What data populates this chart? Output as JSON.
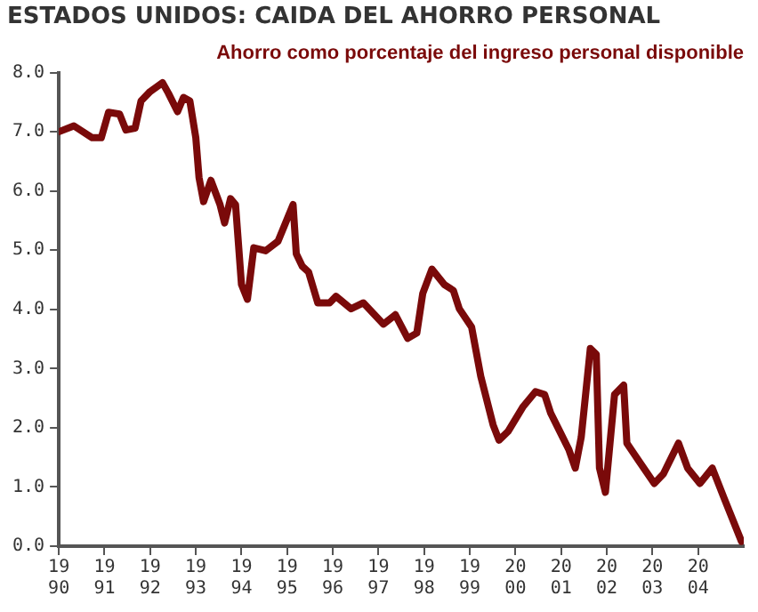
{
  "chart_data": {
    "type": "line",
    "title": "ESTADOS UNIDOS: CAIDA DEL AHORRO PERSONAL",
    "subtitle": "Ahorro como porcentaje del ingreso personal disponible",
    "x": [
      1990.0,
      1990.33,
      1990.73,
      1990.93,
      1991.09,
      1991.33,
      1991.47,
      1991.67,
      1991.8,
      1992.0,
      1992.27,
      1992.4,
      1992.6,
      1992.73,
      1992.87,
      1993.0,
      1993.07,
      1993.17,
      1993.33,
      1993.53,
      1993.63,
      1993.76,
      1993.87,
      1994.0,
      1994.13,
      1994.27,
      1994.53,
      1994.8,
      1995.13,
      1995.2,
      1995.33,
      1995.47,
      1995.67,
      1995.93,
      1996.07,
      1996.4,
      1996.67,
      1997.11,
      1997.37,
      1997.64,
      1997.84,
      1997.97,
      1998.17,
      1998.44,
      1998.64,
      1998.77,
      1999.04,
      1999.24,
      1999.51,
      1999.64,
      1999.84,
      2000.17,
      2000.44,
      2000.64,
      2000.77,
      2000.97,
      2001.17,
      2001.31,
      2001.44,
      2001.64,
      2001.77,
      2001.84,
      2001.97,
      2002.17,
      2002.37,
      2002.44,
      2002.71,
      2003.04,
      2003.24,
      2003.57,
      2003.77,
      2004.04,
      2004.31,
      2004.57,
      2004.95
    ],
    "series": [
      {
        "color": "#7a0a0a",
        "values": [
          7.0,
          7.1,
          6.9,
          6.9,
          7.33,
          7.3,
          7.03,
          7.06,
          7.52,
          7.68,
          7.83,
          7.65,
          7.34,
          7.58,
          7.52,
          6.9,
          6.23,
          5.82,
          6.18,
          5.77,
          5.46,
          5.87,
          5.77,
          4.42,
          4.17,
          5.04,
          4.99,
          5.15,
          5.77,
          4.94,
          4.73,
          4.63,
          4.11,
          4.11,
          4.22,
          4.01,
          4.11,
          3.75,
          3.91,
          3.51,
          3.6,
          4.27,
          4.68,
          4.42,
          4.32,
          4.01,
          3.7,
          2.87,
          2.05,
          1.79,
          1.94,
          2.36,
          2.61,
          2.56,
          2.25,
          1.94,
          1.63,
          1.32,
          1.84,
          3.34,
          3.24,
          1.32,
          0.91,
          2.56,
          2.72,
          1.74,
          1.43,
          1.06,
          1.22,
          1.74,
          1.32,
          1.06,
          1.32,
          0.81,
          0.08
        ]
      }
    ],
    "xlim": [
      1990,
      2005
    ],
    "xticks": [
      1990,
      1991,
      1992,
      1993,
      1994,
      1995,
      1996,
      1997,
      1998,
      1999,
      2000,
      2001,
      2002,
      2003,
      2004
    ],
    "ylim": [
      0,
      8
    ],
    "yticks": [
      {
        "value": 0,
        "label": "0.0"
      },
      {
        "value": 1,
        "label": "1.0"
      },
      {
        "value": 2,
        "label": "2.0"
      },
      {
        "value": 3,
        "label": "3.0"
      },
      {
        "value": 4,
        "label": "4.0"
      },
      {
        "value": 5,
        "label": "5.0"
      },
      {
        "value": 6,
        "label": "6.0"
      },
      {
        "value": 7,
        "label": "7.0"
      },
      {
        "value": 8,
        "label": "8.0"
      }
    ],
    "grid": false,
    "legend": false,
    "marker": "none",
    "line_style": "solid"
  }
}
